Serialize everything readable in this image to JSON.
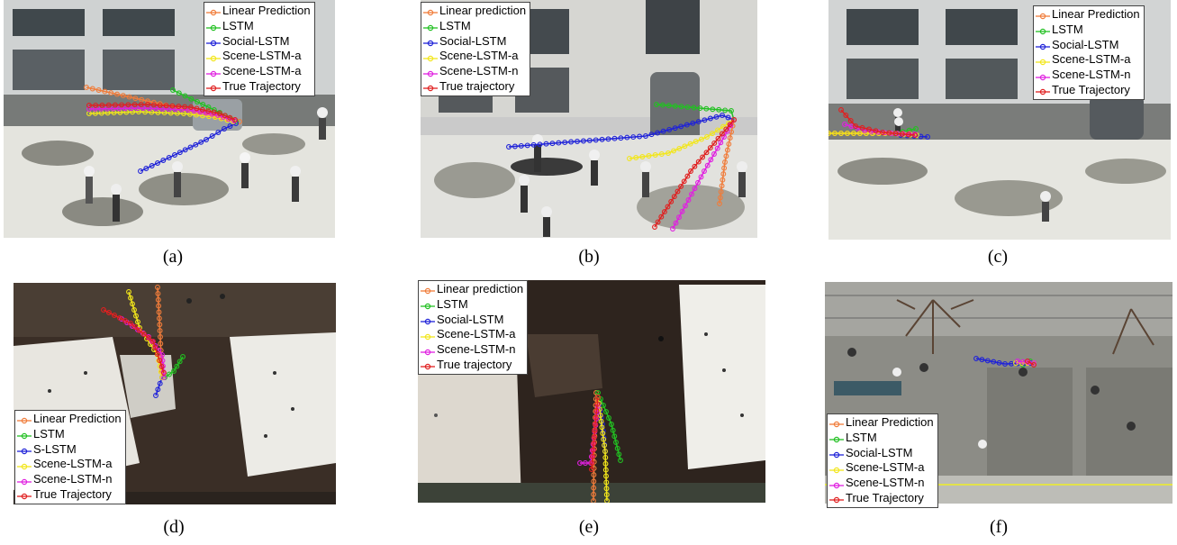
{
  "colors": {
    "linear": "#f07c3a",
    "lstm": "#22c022",
    "social": "#1f22d8",
    "scene_a": "#f2e61b",
    "scene_n": "#e020e0",
    "true": "#e02020"
  },
  "panels": [
    {
      "id": "a",
      "caption": "(a)",
      "legend": [
        "Linear Prediction",
        "LSTM",
        "Social-LSTM",
        "Scene-LSTM-a",
        "Scene-LSTM-a",
        "True Trajectory"
      ]
    },
    {
      "id": "b",
      "caption": "(b)",
      "legend": [
        "Linear prediction",
        "LSTM",
        "Social-LSTM",
        "Scene-LSTM-a",
        "Scene-LSTM-n",
        "True trajectory"
      ]
    },
    {
      "id": "c",
      "caption": "(c)",
      "legend": [
        "Linear Prediction",
        "LSTM",
        "Social-LSTM",
        "Scene-LSTM-a",
        "Scene-LSTM-n",
        "True Trajectory"
      ]
    },
    {
      "id": "d",
      "caption": "(d)",
      "legend": [
        "Linear Prediction",
        "LSTM",
        "S-LSTM",
        "Scene-LSTM-a",
        "Scene-LSTM-n",
        "True Trajectory"
      ]
    },
    {
      "id": "e",
      "caption": "(e)",
      "legend": [
        "Linear prediction",
        "LSTM",
        "Social-LSTM",
        "Scene-LSTM-a",
        "Scene-LSTM-n",
        "True trajectory"
      ]
    },
    {
      "id": "f",
      "caption": "(f)",
      "legend": [
        "Linear Prediction",
        "LSTM",
        "Social-LSTM",
        "Scene-LSTM-a",
        "Scene-LSTM-n",
        "True Trajectory"
      ]
    }
  ]
}
